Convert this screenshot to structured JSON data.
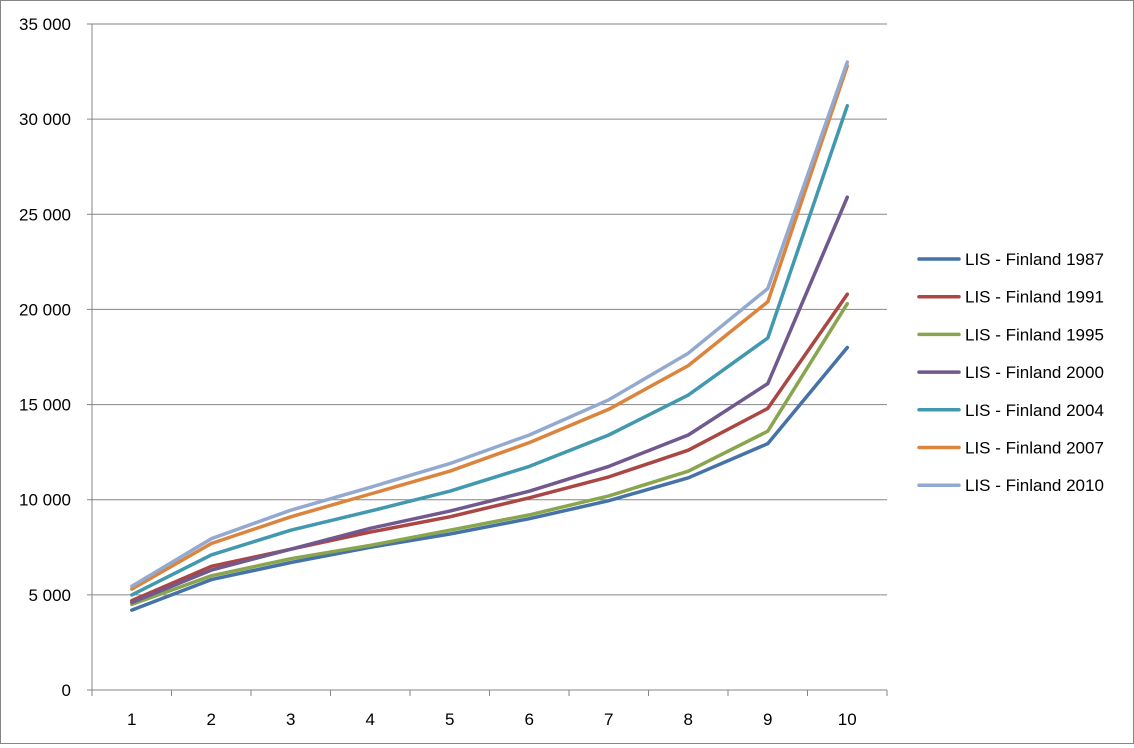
{
  "chart_data": {
    "type": "line",
    "title": "",
    "xlabel": "",
    "ylabel": "",
    "x": [
      "1",
      "2",
      "3",
      "4",
      "5",
      "6",
      "7",
      "8",
      "9",
      "10"
    ],
    "ylim": [
      0,
      35000
    ],
    "yticks": [
      0,
      5000,
      10000,
      15000,
      20000,
      25000,
      30000,
      35000
    ],
    "ytick_labels": [
      "0",
      "5 000",
      "10 000",
      "15 000",
      "20 000",
      "25 000",
      "30 000",
      "35 000"
    ],
    "grid": "horizontal",
    "legend_position": "right",
    "series": [
      {
        "name": "LIS - Finland 1987",
        "color": "#4572A7",
        "values": [
          4200,
          5800,
          6700,
          7500,
          8200,
          9000,
          9950,
          11150,
          12950,
          18000
        ]
      },
      {
        "name": "LIS - Finland 1991",
        "color": "#AA4643",
        "values": [
          4700,
          6500,
          7400,
          8300,
          9100,
          10100,
          11200,
          12600,
          14800,
          20800
        ]
      },
      {
        "name": "LIS - Finland 1995",
        "color": "#89A54E",
        "values": [
          4500,
          6000,
          6900,
          7600,
          8400,
          9200,
          10200,
          11500,
          13600,
          20300
        ]
      },
      {
        "name": "LIS - Finland 2000",
        "color": "#71588F",
        "values": [
          4600,
          6300,
          7400,
          8500,
          9400,
          10450,
          11750,
          13400,
          16100,
          25900
        ]
      },
      {
        "name": "LIS - Finland 2004",
        "color": "#4198AF",
        "values": [
          5000,
          7100,
          8400,
          9400,
          10450,
          11750,
          13400,
          15500,
          18500,
          30700
        ]
      },
      {
        "name": "LIS - Finland 2007",
        "color": "#DB843D",
        "values": [
          5300,
          7700,
          9100,
          10300,
          11500,
          13000,
          14750,
          17050,
          20400,
          32800
        ]
      },
      {
        "name": "LIS - Finland 2010",
        "color": "#93A9CF",
        "values": [
          5450,
          7950,
          9450,
          10650,
          11900,
          13400,
          15250,
          17700,
          21100,
          33000
        ]
      }
    ]
  }
}
